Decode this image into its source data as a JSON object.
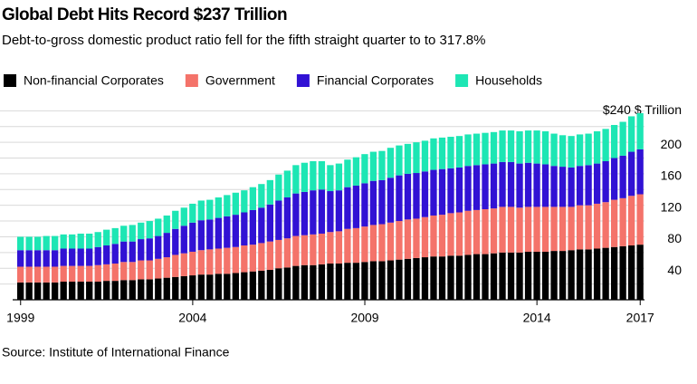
{
  "chart_data": {
    "type": "stacked_bar",
    "title": "Global Debt Hits Record $237 Trillion",
    "subtitle": "Debt-to-gross domestic product ratio fell for the fifth straight quarter to to 317.8%",
    "source": "Source: Institute of International Finance",
    "categories": [
      "1999",
      null,
      null,
      null,
      null,
      null,
      null,
      null,
      null,
      null,
      null,
      null,
      null,
      null,
      null,
      null,
      null,
      null,
      null,
      null,
      "2004",
      null,
      null,
      null,
      null,
      null,
      null,
      null,
      null,
      null,
      null,
      null,
      null,
      null,
      null,
      null,
      null,
      null,
      null,
      null,
      "2009",
      null,
      null,
      null,
      null,
      null,
      null,
      null,
      null,
      null,
      null,
      null,
      null,
      null,
      null,
      null,
      null,
      null,
      null,
      null,
      "2014",
      null,
      null,
      null,
      null,
      null,
      null,
      null,
      null,
      null,
      null,
      null,
      "2017"
    ],
    "series": [
      {
        "name": "Non-financial Corporates",
        "color": "#000000",
        "values": [
          22,
          22,
          22,
          22,
          22,
          23,
          23,
          23,
          23,
          23,
          24,
          24,
          25,
          25,
          26,
          26,
          27,
          28,
          29,
          30,
          31,
          32,
          32,
          33,
          33,
          34,
          35,
          36,
          37,
          38,
          40,
          41,
          43,
          44,
          44,
          45,
          46,
          46,
          47,
          47,
          48,
          49,
          49,
          50,
          51,
          52,
          53,
          54,
          55,
          55,
          56,
          56,
          57,
          58,
          58,
          59,
          60,
          60,
          60,
          61,
          61,
          61,
          62,
          62,
          63,
          64,
          64,
          65,
          66,
          67,
          68,
          69,
          70
        ]
      },
      {
        "name": "Government",
        "color": "#f4736a",
        "values": [
          20,
          20,
          20,
          20,
          20,
          20,
          20,
          20,
          20,
          21,
          21,
          22,
          23,
          23,
          24,
          24,
          25,
          26,
          28,
          29,
          30,
          31,
          32,
          32,
          33,
          33,
          34,
          34,
          35,
          36,
          36,
          37,
          38,
          38,
          39,
          39,
          40,
          41,
          43,
          44,
          45,
          46,
          47,
          48,
          49,
          50,
          50,
          51,
          52,
          53,
          54,
          55,
          56,
          56,
          57,
          57,
          58,
          58,
          57,
          57,
          57,
          57,
          56,
          56,
          55,
          56,
          56,
          57,
          58,
          60,
          61,
          63,
          64
        ]
      },
      {
        "name": "Financial Corporates",
        "color": "#3112d4",
        "values": [
          21,
          21,
          21,
          21,
          21,
          22,
          22,
          22,
          22,
          23,
          24,
          25,
          26,
          26,
          27,
          28,
          29,
          31,
          33,
          35,
          37,
          38,
          38,
          39,
          40,
          41,
          42,
          44,
          45,
          47,
          50,
          52,
          54,
          55,
          56,
          56,
          52,
          52,
          53,
          54,
          55,
          56,
          56,
          57,
          58,
          58,
          58,
          58,
          58,
          58,
          57,
          57,
          57,
          57,
          57,
          57,
          57,
          57,
          56,
          56,
          55,
          54,
          52,
          51,
          50,
          50,
          51,
          51,
          52,
          53,
          54,
          56,
          57
        ]
      },
      {
        "name": "Households",
        "color": "#1de6b4",
        "values": [
          17,
          17,
          17,
          18,
          18,
          18,
          18,
          19,
          19,
          19,
          20,
          20,
          20,
          21,
          21,
          22,
          22,
          22,
          23,
          23,
          24,
          25,
          25,
          26,
          27,
          28,
          28,
          29,
          30,
          31,
          33,
          34,
          36,
          37,
          37,
          36,
          33,
          34,
          35,
          36,
          37,
          37,
          37,
          38,
          38,
          38,
          39,
          39,
          40,
          40,
          40,
          40,
          40,
          40,
          40,
          40,
          40,
          40,
          41,
          41,
          42,
          42,
          41,
          40,
          40,
          40,
          40,
          41,
          41,
          42,
          43,
          45,
          46
        ]
      }
    ],
    "ylim": [
      0,
      245
    ],
    "yticks": [
      40,
      80,
      120,
      160,
      200,
      {
        "value": 240,
        "label": "$240 $ Trillion"
      }
    ],
    "minor_yticks": [
      20,
      60,
      100,
      140,
      180,
      220
    ],
    "grid": true
  }
}
